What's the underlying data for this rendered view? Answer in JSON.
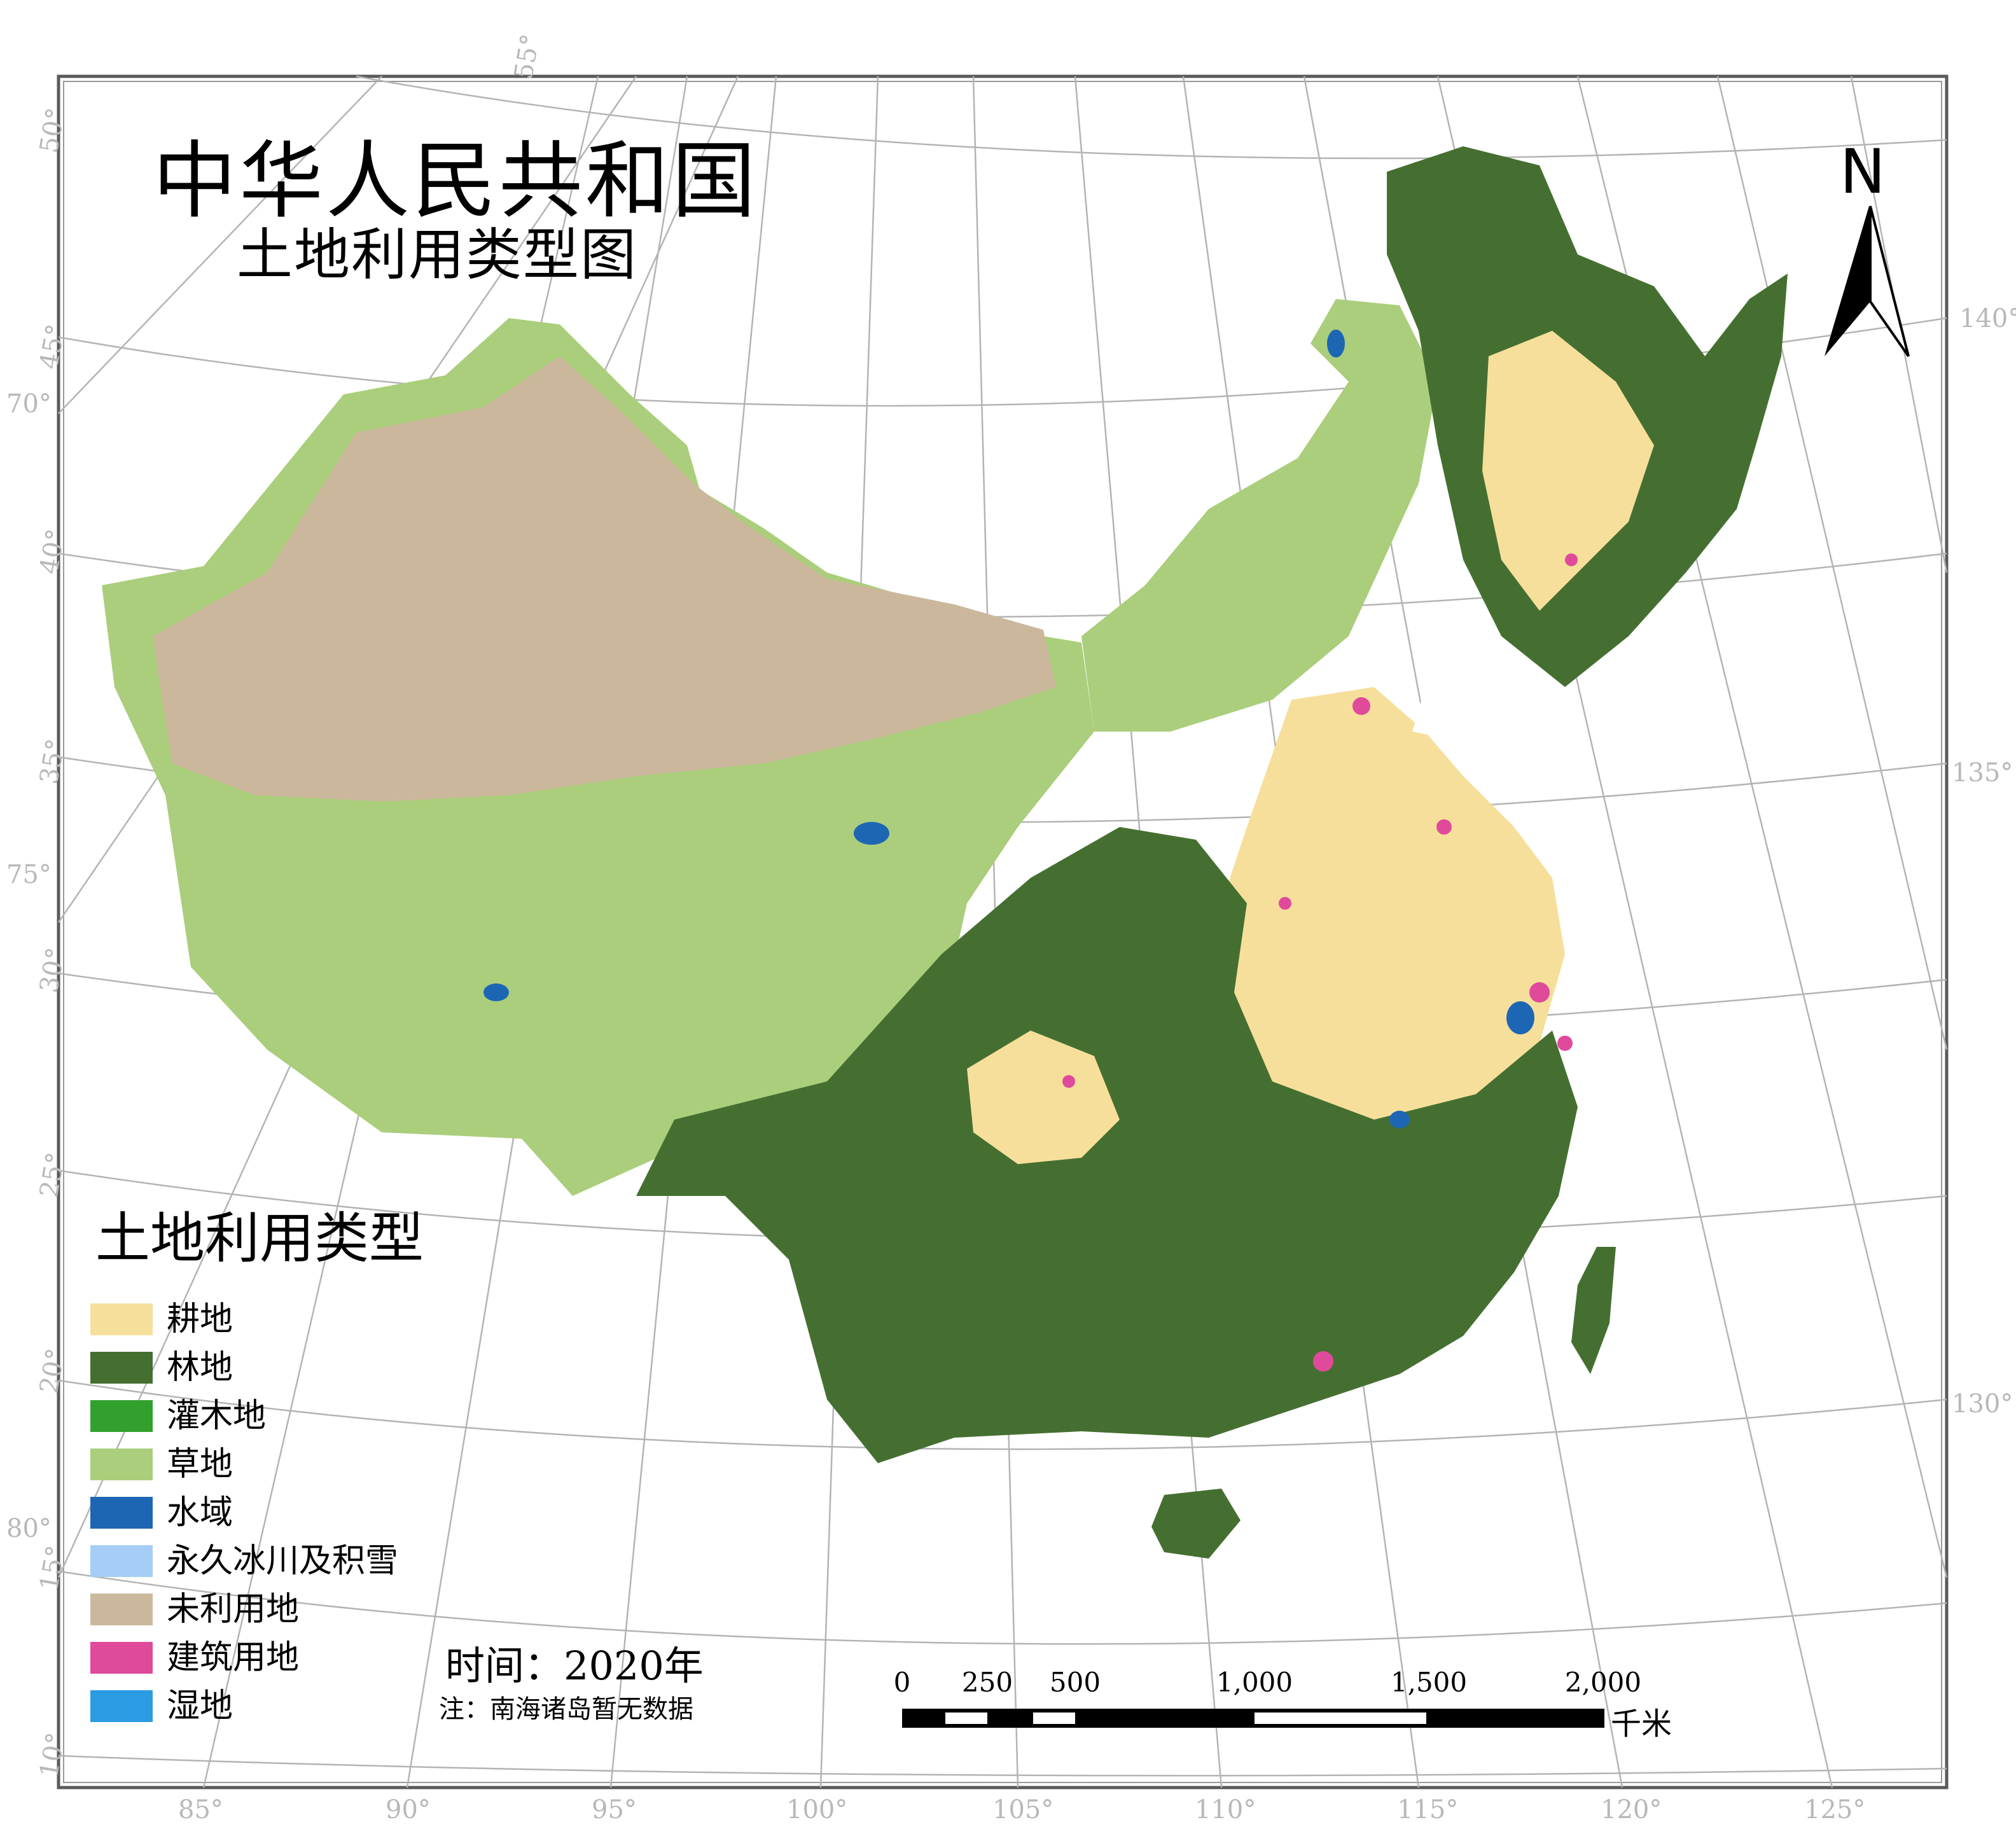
{
  "title": {
    "main": "中华人民共和国",
    "sub": "土地利用类型图"
  },
  "north_arrow": {
    "letter": "N",
    "icon": "north-arrow-icon"
  },
  "graticule": {
    "bottom": [
      "85°",
      "90°",
      "95°",
      "100°",
      "105°",
      "110°",
      "115°",
      "120°",
      "125°"
    ],
    "left_lat": [
      "50°",
      "45°",
      "40°",
      "35°",
      "30°",
      "25°",
      "20°",
      "15°",
      "10°"
    ],
    "left_lon": [
      "70°",
      "75°",
      "80°"
    ],
    "top": "55°",
    "right": [
      "140°",
      "135°",
      "130°"
    ]
  },
  "legend": {
    "title": "土地利用类型",
    "items": [
      {
        "label": "耕地",
        "color": "#f6df9b"
      },
      {
        "label": "林地",
        "color": "#456f31"
      },
      {
        "label": "灌木地",
        "color": "#32a02d"
      },
      {
        "label": "草地",
        "color": "#aace7b"
      },
      {
        "label": "水域",
        "color": "#1d66b4"
      },
      {
        "label": "永久冰川及积雪",
        "color": "#a6cdf5"
      },
      {
        "label": "未利用地",
        "color": "#cbb89c"
      },
      {
        "label": "建筑用地",
        "color": "#e04a9b"
      },
      {
        "label": "湿地",
        "color": "#2b9be3"
      }
    ]
  },
  "time_label": "时间：2020年",
  "note": "注：南海诸岛暂无数据",
  "scale_bar": {
    "ticks": [
      "0",
      "250",
      "500",
      "1,000",
      "1,500",
      "2,000"
    ],
    "unit": "千米"
  }
}
